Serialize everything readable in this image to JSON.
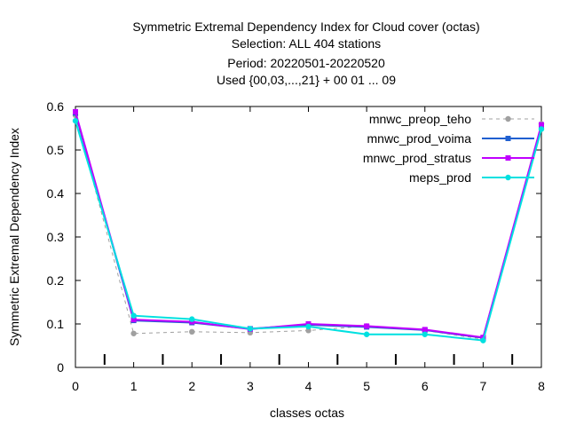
{
  "chart_data": {
    "type": "line",
    "title_lines": [
      "Symmetric Extremal Dependency Index  for Cloud cover (octas)",
      "Selection: ALL    404 stations",
      "Period: 20220501-20220520",
      "Used {00,03,...,21} + 00 01 ... 09"
    ],
    "xlabel": "classes octas",
    "ylabel": "Symmetric Extremal Dependency Index",
    "xlim": [
      0,
      8
    ],
    "ylim": [
      0,
      0.6
    ],
    "x_ticks": [
      0,
      1,
      2,
      3,
      4,
      5,
      6,
      7,
      8
    ],
    "x_tick_labels": [
      "0",
      "1",
      "2",
      "3",
      "4",
      "5",
      "6",
      "7",
      "8"
    ],
    "y_ticks": [
      0,
      0.1,
      0.2,
      0.3,
      0.4,
      0.5,
      0.6
    ],
    "y_tick_labels": [
      "0",
      "0.1",
      "0.2",
      "0.3",
      "0.4",
      "0.5",
      "0.6"
    ],
    "grid": false,
    "legend_position": "top-right",
    "class_markers_x": [
      0.5,
      1.5,
      2.5,
      3.5,
      4.5,
      5.5,
      6.5,
      7.5
    ],
    "series": [
      {
        "name": "mnwc_preop_teho",
        "color": "#a0a0a0",
        "dashed": true,
        "marker": "circle",
        "x": [
          0,
          1,
          2,
          3,
          4,
          5,
          6,
          7,
          8
        ],
        "y": [
          0.58,
          0.078,
          0.082,
          0.08,
          0.085,
          0.095,
          0.085,
          0.065,
          0.56
        ]
      },
      {
        "name": "mnwc_prod_voima",
        "color": "#2060d0",
        "dashed": false,
        "marker": "square",
        "x": [
          0,
          1,
          2,
          3,
          4,
          5,
          6,
          7,
          8
        ],
        "y": [
          0.585,
          0.108,
          0.103,
          0.089,
          0.098,
          0.093,
          0.086,
          0.068,
          0.555
        ]
      },
      {
        "name": "mnwc_prod_stratus",
        "color": "#c000ff",
        "dashed": false,
        "marker": "square",
        "x": [
          0,
          1,
          2,
          3,
          4,
          5,
          6,
          7,
          8
        ],
        "y": [
          0.588,
          0.11,
          0.105,
          0.088,
          0.1,
          0.095,
          0.087,
          0.069,
          0.558
        ]
      },
      {
        "name": "meps_prod",
        "color": "#00e0e0",
        "dashed": false,
        "marker": "circle",
        "x": [
          0,
          1,
          2,
          3,
          4,
          5,
          6,
          7,
          8
        ],
        "y": [
          0.567,
          0.119,
          0.111,
          0.089,
          0.094,
          0.076,
          0.076,
          0.062,
          0.548
        ]
      }
    ]
  }
}
